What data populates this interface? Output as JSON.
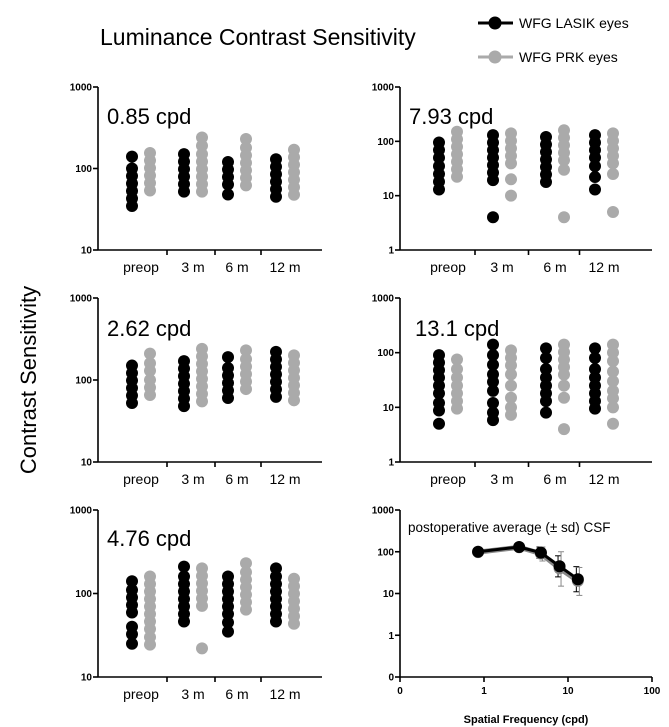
{
  "figure": {
    "title": "Luminance Contrast Sensitivity",
    "ylabel": "Contrast Sensitivity",
    "legend": [
      {
        "label": "WFG LASIK eyes",
        "color": "#000000"
      },
      {
        "label": "WFG PRK eyes",
        "color": "#aaaaaa"
      }
    ]
  },
  "chart_data": [
    {
      "type": "scatter",
      "title": "0.85 cpd",
      "yscale": "log",
      "ylim": [
        10,
        1000
      ],
      "categories": [
        "preop",
        "3 m",
        "6 m",
        "12 m"
      ],
      "series": [
        {
          "name": "WFG LASIK eyes",
          "color": "#000000",
          "values": [
            [
              140,
              100,
              90,
              80,
              75,
              70,
              65
            ],
            [
              150,
              130,
              110,
              95,
              85,
              75
            ],
            [
              120,
              100,
              85,
              65,
              48
            ],
            [
              130,
              120,
              110,
              100,
              95,
              85
            ]
          ]
        },
        {
          "name": "WFG PRK eyes",
          "color": "#aaaaaa",
          "values": [
            [
              155,
              130,
              110,
              95,
              85,
              75
            ],
            [
              240,
              190,
              150,
              130,
              120,
              110,
              95,
              70
            ],
            [
              230,
              180,
              145,
              125,
              110,
              100,
              90
            ],
            [
              170,
              150,
              130,
              115,
              100,
              90,
              75
            ]
          ]
        }
      ]
    },
    {
      "type": "scatter",
      "title": "7.93 cpd",
      "yscale": "log",
      "ylim": [
        1,
        1000
      ],
      "categories": [
        "preop",
        "3 m",
        "6 m",
        "12 m"
      ],
      "series": [
        {
          "name": "WFG LASIK eyes",
          "color": "#000000",
          "values": [
            [
              95,
              70,
              50,
              35,
              25,
              18,
              13
            ],
            [
              130,
              110,
              80,
              60,
              40,
              30,
              20,
              4
            ],
            [
              120,
              90,
              70,
              50,
              35,
              25,
              18
            ],
            [
              130,
              100,
              80,
              55,
              35,
              22,
              13
            ]
          ]
        },
        {
          "name": "WFG PRK eyes",
          "color": "#aaaaaa",
          "values": [
            [
              150,
              110,
              80,
              60,
              45,
              35,
              30
            ],
            [
              140,
              110,
              80,
              60,
              40,
              20,
              10
            ],
            [
              160,
              120,
              90,
              70,
              50,
              30,
              4
            ],
            [
              140,
              110,
              80,
              60,
              40,
              25,
              5
            ]
          ]
        }
      ]
    },
    {
      "type": "scatter",
      "title": "2.62 cpd",
      "yscale": "log",
      "ylim": [
        10,
        1000
      ],
      "categories": [
        "preop",
        "3 m",
        "6 m",
        "12 m"
      ],
      "series": [
        {
          "name": "WFG LASIK eyes",
          "color": "#000000",
          "values": [
            [
              150,
              130,
              110,
              100,
              90,
              80
            ],
            [
              170,
              150,
              130,
              115,
              100,
              90,
              80
            ],
            [
              190,
              140,
              115,
              100,
              80,
              65
            ],
            [
              220,
              190,
              160,
              135,
              115,
              100,
              85
            ]
          ]
        },
        {
          "name": "WFG PRK eyes",
          "color": "#aaaaaa",
          "values": [
            [
              210,
              160,
              130,
              100,
              85,
              75
            ],
            [
              240,
              200,
              170,
              150,
              130,
              115,
              100,
              70
            ],
            [
              230,
              180,
              150,
              130,
              115,
              100
            ],
            [
              200,
              170,
              140,
              120,
              100,
              85,
              70
            ]
          ]
        }
      ]
    },
    {
      "type": "scatter",
      "title": "13.1 cpd",
      "yscale": "log",
      "ylim": [
        1,
        1000
      ],
      "categories": [
        "preop",
        "3 m",
        "6 m",
        "12 m"
      ],
      "series": [
        {
          "name": "WFG LASIK eyes",
          "color": "#000000",
          "values": [
            [
              90,
              80,
              50,
              35,
              25,
              18,
              12,
              9,
              5
            ],
            [
              140,
              90,
              60,
              40,
              30,
              20,
              12,
              8,
              6
            ],
            [
              120,
              80,
              50,
              35,
              25,
              18,
              13,
              8
            ],
            [
              120,
              80,
              50,
              35,
              25,
              18,
              13,
              10
            ]
          ]
        },
        {
          "name": "WFG PRK eyes",
          "color": "#aaaaaa",
          "values": [
            [
              75,
              50,
              35,
              25,
              18,
              13,
              10
            ],
            [
              110,
              90,
              60,
              40,
              25,
              15,
              10,
              8
            ],
            [
              140,
              110,
              80,
              60,
              40,
              25,
              15,
              4
            ],
            [
              140,
              100,
              70,
              45,
              30,
              20,
              15,
              10,
              5
            ]
          ]
        }
      ]
    },
    {
      "type": "scatter",
      "title": "4.76 cpd",
      "yscale": "log",
      "ylim": [
        10,
        1000
      ],
      "categories": [
        "preop",
        "3 m",
        "6 m",
        "12 m"
      ],
      "series": [
        {
          "name": "WFG LASIK eyes",
          "color": "#000000",
          "values": [
            [
              140,
              110,
              90,
              75,
              60,
              40,
              35,
              25
            ],
            [
              210,
              160,
              130,
              110,
              95,
              80,
              65,
              55
            ],
            [
              160,
              140,
              120,
              100,
              80,
              60,
              45,
              35
            ],
            [
              200,
              160,
              130,
              110,
              90,
              75,
              60,
              50
            ]
          ]
        },
        {
          "name": "WFG PRK eyes",
          "color": "#aaaaaa",
          "values": [
            [
              160,
              130,
              110,
              90,
              75,
              65,
              55,
              45,
              30,
              25
            ],
            [
              200,
              170,
              140,
              120,
              100,
              80,
              22
            ],
            [
              230,
              180,
              150,
              130,
              110,
              95,
              85
            ],
            [
              150,
              130,
              115,
              100,
              90,
              80,
              70
            ]
          ]
        }
      ]
    },
    {
      "type": "line",
      "title": "postoperative average (± sd) CSF",
      "xlabel": "Spatial Frequency (cpd)",
      "xscale": "log",
      "yscale": "log",
      "xlim": [
        0,
        100
      ],
      "ylim": [
        0,
        1000
      ],
      "xticks": [
        "0",
        "1",
        "10",
        "100"
      ],
      "yticks": [
        "0",
        "1",
        "10",
        "100",
        "1000"
      ],
      "x": [
        0.85,
        2.62,
        4.76,
        7.93,
        13.1
      ],
      "series": [
        {
          "name": "WFG LASIK eyes",
          "color": "#000000",
          "y": [
            100,
            130,
            95,
            45,
            22
          ],
          "sd": [
            [
              85,
              118
            ],
            [
              110,
              155
            ],
            [
              70,
              130
            ],
            [
              25,
              80
            ],
            [
              11,
              44
            ]
          ]
        },
        {
          "name": "WFG PRK eyes",
          "color": "#888888",
          "y": [
            98,
            128,
            90,
            40,
            20
          ],
          "sd": [
            [
              82,
              116
            ],
            [
              105,
              150
            ],
            [
              60,
              130
            ],
            [
              15,
              100
            ],
            [
              9,
              42
            ]
          ]
        }
      ]
    }
  ]
}
